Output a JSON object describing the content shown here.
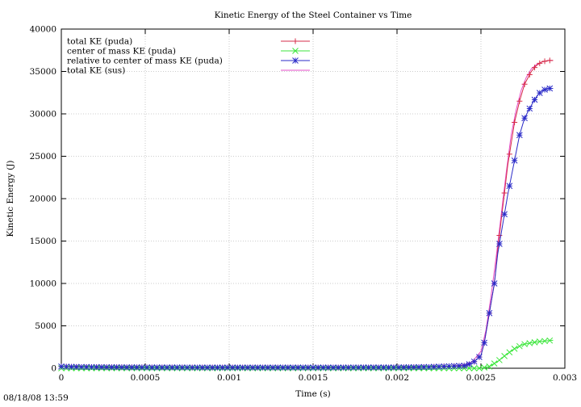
{
  "chart_data": {
    "type": "line",
    "title": "Kinetic Energy of the Steel Container vs Time",
    "xlabel": "Time (s)",
    "ylabel": "Kinetic Energy (J)",
    "xlim": [
      0,
      0.003
    ],
    "ylim": [
      0,
      40000
    ],
    "xticks": [
      0,
      0.0005,
      0.001,
      0.0015,
      0.002,
      0.0025,
      0.003
    ],
    "xtick_labels": [
      "0",
      "0.0005",
      "0.001",
      "0.0015",
      "0.002",
      "0.0025",
      "0.003"
    ],
    "yticks": [
      0,
      5000,
      10000,
      15000,
      20000,
      25000,
      30000,
      35000,
      40000
    ],
    "ytick_labels": [
      "0",
      "5000",
      "10000",
      "15000",
      "20000",
      "25000",
      "30000",
      "35000",
      "40000"
    ],
    "grid": true,
    "legend_position": "top-left",
    "series": [
      {
        "name": "total KE (puda)",
        "color": "#d62c48",
        "marker": "plus",
        "x": [
          0,
          0.0001,
          0.0003,
          0.0005,
          0.001,
          0.0015,
          0.002,
          0.0022,
          0.0024,
          0.00245,
          0.0025,
          0.00252,
          0.00255,
          0.00258,
          0.0026,
          0.00263,
          0.00266,
          0.0027,
          0.00273,
          0.00276,
          0.0028,
          0.00283,
          0.00286,
          0.0029,
          0.00293
        ],
        "y": [
          200,
          150,
          120,
          100,
          80,
          80,
          100,
          150,
          300,
          600,
          1500,
          3000,
          6500,
          10000,
          14000,
          19000,
          24000,
          29000,
          31500,
          33500,
          35000,
          35700,
          36100,
          36300,
          36300
        ]
      },
      {
        "name": "center of mass KE (puda)",
        "color": "#3ce63c",
        "marker": "x",
        "x": [
          0,
          0.001,
          0.002,
          0.0024,
          0.0025,
          0.00255,
          0.0026,
          0.00265,
          0.0027,
          0.00275,
          0.0028,
          0.00285,
          0.0029,
          0.00293
        ],
        "y": [
          0,
          0,
          0,
          0,
          0,
          200,
          800,
          1600,
          2300,
          2800,
          3000,
          3150,
          3250,
          3300
        ]
      },
      {
        "name": "relative to center of mass KE (puda)",
        "color": "#2b2bc8",
        "marker": "asterisk",
        "x": [
          0,
          0.0001,
          0.0003,
          0.0005,
          0.001,
          0.0015,
          0.002,
          0.0022,
          0.0024,
          0.00245,
          0.0025,
          0.00252,
          0.00255,
          0.00258,
          0.0026,
          0.00263,
          0.00266,
          0.0027,
          0.00273,
          0.00276,
          0.0028,
          0.00283,
          0.00286,
          0.0029,
          0.00293
        ],
        "y": [
          200,
          150,
          120,
          100,
          80,
          80,
          100,
          150,
          300,
          600,
          1500,
          3000,
          6500,
          10000,
          13500,
          17000,
          20500,
          24500,
          27500,
          29500,
          31000,
          32000,
          32700,
          33000,
          33000
        ]
      },
      {
        "name": "total KE (sus)",
        "color": "#e650c8",
        "marker": "none",
        "x": [
          0,
          0.0005,
          0.001,
          0.0015,
          0.002,
          0.0023,
          0.0024,
          0.00245,
          0.0025,
          0.00253,
          0.00256,
          0.00259,
          0.00262,
          0.00265,
          0.00268,
          0.00271,
          0.00274,
          0.00277,
          0.0028,
          0.00283,
          0.00286,
          0.0029,
          0.00293
        ],
        "y": [
          200,
          100,
          80,
          80,
          100,
          200,
          400,
          800,
          2000,
          4500,
          8500,
          13000,
          18000,
          23000,
          27500,
          30500,
          32800,
          34300,
          35300,
          35800,
          36100,
          36300,
          36300
        ]
      }
    ]
  },
  "timestamp": "08/18/08 13:59"
}
